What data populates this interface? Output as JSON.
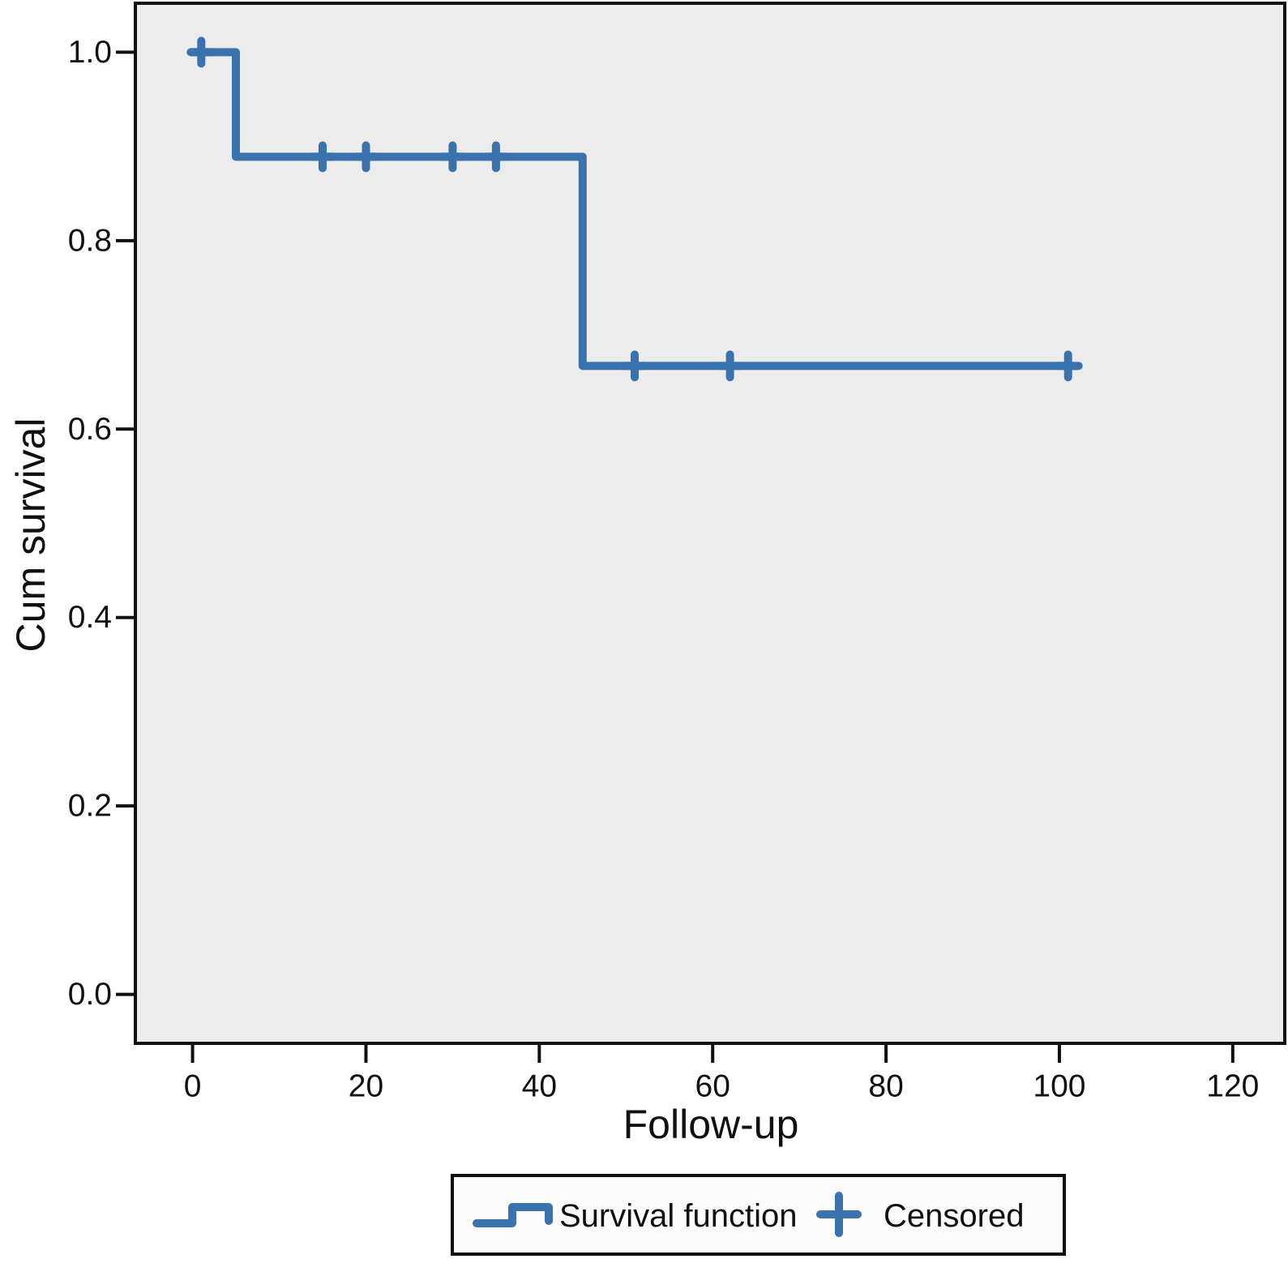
{
  "chart_data": {
    "type": "line",
    "subtype": "kaplan_meier_step",
    "title": "",
    "xlabel": "Follow-up",
    "ylabel": "Cum survival",
    "xlim": [
      -6.6,
      126.0
    ],
    "ylim": [
      -0.052,
      1.052
    ],
    "grid": false,
    "x_ticks": [
      {
        "v": 0,
        "label": "0"
      },
      {
        "v": 20,
        "label": "20"
      },
      {
        "v": 40,
        "label": "40"
      },
      {
        "v": 60,
        "label": "60"
      },
      {
        "v": 80,
        "label": "80"
      },
      {
        "v": 100,
        "label": "100"
      },
      {
        "v": 120,
        "label": "120"
      }
    ],
    "y_ticks": [
      {
        "v": 1.0,
        "label": "1.0"
      },
      {
        "v": 0.8,
        "label": "0.8"
      },
      {
        "v": 0.6,
        "label": "0.6"
      },
      {
        "v": 0.4,
        "label": "0.4"
      },
      {
        "v": 0.2,
        "label": "0.2"
      },
      {
        "v": 0.0,
        "label": "0.0"
      }
    ],
    "series": [
      {
        "name": "Survival function",
        "type": "step",
        "color": "#3A72AE",
        "points": [
          [
            0,
            1.0
          ],
          [
            5,
            1.0
          ],
          [
            5,
            0.889
          ],
          [
            45,
            0.889
          ],
          [
            45,
            0.667
          ],
          [
            102,
            0.667
          ]
        ]
      },
      {
        "name": "Censored",
        "type": "plus_marker",
        "color": "#3A72AE",
        "points": [
          [
            1,
            1.0
          ],
          [
            15,
            0.889
          ],
          [
            20,
            0.889
          ],
          [
            30,
            0.889
          ],
          [
            35,
            0.889
          ],
          [
            51,
            0.667
          ],
          [
            62,
            0.667
          ],
          [
            101,
            0.667
          ]
        ]
      }
    ],
    "legend": {
      "position": "bottom-center"
    },
    "colors": {
      "line": "#3A72AE",
      "plot_background": "#ECECEC",
      "frame": "#101010",
      "text": "#101010",
      "legend_background": "#FCFCFC"
    }
  }
}
